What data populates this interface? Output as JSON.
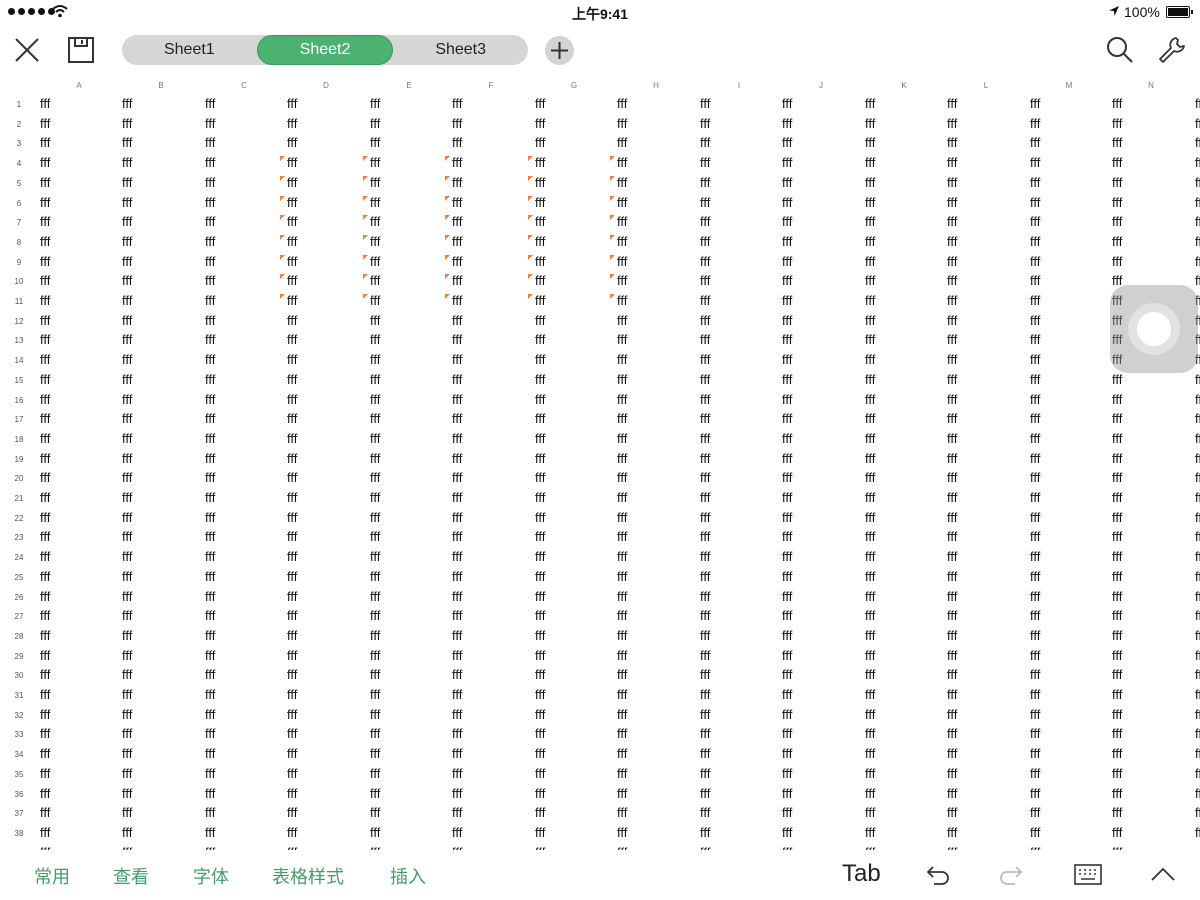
{
  "status_bar": {
    "time": "上午9:41",
    "battery_text": "100%",
    "battery_level": 1.0
  },
  "toolbar": {
    "close_icon": "close-icon",
    "save_icon": "save-icon",
    "sheets": [
      {
        "label": "Sheet1",
        "active": false
      },
      {
        "label": "Sheet2",
        "active": true
      },
      {
        "label": "Sheet3",
        "active": false
      }
    ],
    "add_sheet_icon": "plus-icon",
    "search_icon": "search-icon",
    "tools_icon": "wrench-icon",
    "accent_color": "#4cb272"
  },
  "sheet": {
    "columns": [
      "A",
      "B",
      "C",
      "D",
      "E",
      "F",
      "G",
      "H",
      "I",
      "J",
      "K",
      "L",
      "M",
      "N"
    ],
    "rows": [
      "1",
      "2",
      "3",
      "4",
      "5",
      "6",
      "7",
      "8",
      "9",
      "10",
      "11",
      "12",
      "13",
      "14",
      "15",
      "16",
      "17",
      "18",
      "19",
      "20",
      "21",
      "22",
      "23",
      "24",
      "25",
      "26",
      "27",
      "28",
      "29",
      "30",
      "31",
      "32",
      "33",
      "34",
      "35",
      "36",
      "37",
      "38"
    ],
    "cell_value": "fff",
    "comment_marker_color": "#e8823c"
  },
  "bottom_bar": {
    "menu": [
      "常用",
      "查看",
      "字体",
      "表格样式",
      "插入"
    ],
    "tab_label": "Tab",
    "undo_icon": "undo-icon",
    "redo_icon": "redo-icon",
    "keyboard_icon": "keyboard-icon",
    "collapse_icon": "chevron-up-icon"
  }
}
